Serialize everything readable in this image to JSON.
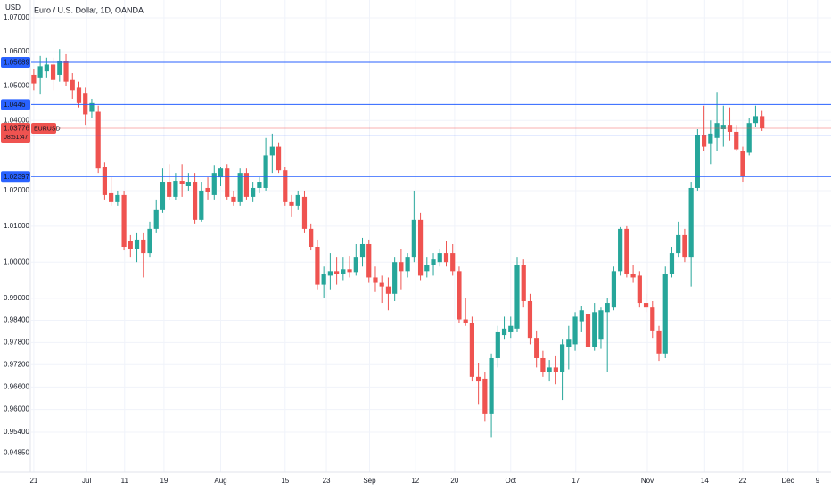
{
  "chart_data": {
    "type": "candlestick",
    "title": "Euro / U.S. Dollar, 1D, OANDA",
    "y_label": "USD",
    "up_color": "#26a69a",
    "down_color": "#ef5350",
    "log_scale": true,
    "grid": true,
    "ylim": [
      0.9458,
      1.0753
    ],
    "yticks": [
      {
        "value": 1.07,
        "label": "1.07000"
      },
      {
        "value": 1.06,
        "label": "1.06000"
      },
      {
        "value": 1.05,
        "label": "1.05000"
      },
      {
        "value": 1.04,
        "label": "1.04000"
      },
      {
        "value": 1.02,
        "label": "1.02000"
      },
      {
        "value": 1.01,
        "label": "1.01000"
      },
      {
        "value": 1.0,
        "label": "1.00000"
      },
      {
        "value": 0.99,
        "label": "0.99000"
      },
      {
        "value": 0.984,
        "label": "0.98400"
      },
      {
        "value": 0.978,
        "label": "0.97800"
      },
      {
        "value": 0.972,
        "label": "0.97200"
      },
      {
        "value": 0.966,
        "label": "0.96600"
      },
      {
        "value": 0.96,
        "label": "0.96000"
      },
      {
        "value": 0.954,
        "label": "0.95400"
      },
      {
        "value": 0.9485,
        "label": "0.94850"
      }
    ],
    "xlim": [
      -0.4,
      123.7
    ],
    "xticks": [
      {
        "value": 0,
        "label": "21"
      },
      {
        "value": 8.2,
        "label": "Jul"
      },
      {
        "value": 14.1,
        "label": "11"
      },
      {
        "value": 20.2,
        "label": "19"
      },
      {
        "value": 29,
        "label": "Aug"
      },
      {
        "value": 39,
        "label": "15"
      },
      {
        "value": 45.4,
        "label": "23"
      },
      {
        "value": 52.1,
        "label": "Sep"
      },
      {
        "value": 59.2,
        "label": "12"
      },
      {
        "value": 65.3,
        "label": "20"
      },
      {
        "value": 74,
        "label": "Oct"
      },
      {
        "value": 84.1,
        "label": "17"
      },
      {
        "value": 95.2,
        "label": "Nov"
      },
      {
        "value": 104.1,
        "label": "14"
      },
      {
        "value": 110,
        "label": "22"
      },
      {
        "value": 117,
        "label": "Dec"
      },
      {
        "value": 121.6,
        "label": "9"
      }
    ],
    "open": [
      1.05325,
      1.0525,
      1.05425,
      1.05625,
      1.05325,
      1.05725,
      1.05175,
      1.0495,
      1.048,
      1.0425,
      1.0425,
      1.02675,
      1.01925,
      1.01675,
      1.01875,
      1.00575,
      1.00375,
      1.00625,
      1.0025,
      1.00925,
      1.0145,
      1.0225,
      1.01825,
      1.02275,
      1.02125,
      1.0225,
      1.01175,
      1.02075,
      1.01875,
      1.02375,
      1.02625,
      1.01825,
      1.01675,
      1.025,
      1.01825,
      1.02075,
      1.02075,
      1.03,
      1.0325,
      1.02575,
      1.01675,
      1.01575,
      1.01825,
      1.00925,
      1.00425,
      0.99375,
      0.99625,
      0.9975,
      0.99675,
      0.998,
      0.99725,
      1.00125,
      1.005,
      0.99575,
      0.99425,
      0.99325,
      0.99125,
      1.0,
      0.9975,
      1.00125,
      1.01175,
      0.9975,
      0.99925,
      1.0,
      1.0025,
      1.0025,
      0.9975,
      0.98425,
      0.98325,
      0.96875,
      0.96825,
      0.95875,
      0.97375,
      0.98,
      0.98075,
      0.98175,
      0.99925,
      0.98925,
      0.97925,
      0.97375,
      0.97,
      0.97125,
      0.97,
      0.97675,
      0.9775,
      0.98375,
      0.98575,
      0.97675,
      0.97875,
      0.98625,
      0.9875,
      0.9975,
      1.00925,
      0.99675,
      0.99625,
      0.98875,
      0.9875,
      0.98125,
      0.975,
      0.99675,
      1.0025,
      1.0075,
      1.00125,
      1.02075,
      1.03575,
      1.03325,
      1.035,
      1.0375,
      1.03875,
      1.03675,
      1.03125,
      1.03075,
      1.03925,
      1.04125
    ],
    "high": [
      1.055,
      1.05875,
      1.05825,
      1.05825,
      1.06075,
      1.05925,
      1.05375,
      1.05125,
      1.0495,
      1.04625,
      1.04425,
      1.028,
      1.02375,
      1.02,
      1.02,
      1.0075,
      1.00825,
      1.00825,
      1.01125,
      1.0175,
      1.02625,
      1.0275,
      1.025,
      1.0275,
      1.025,
      1.025,
      1.0225,
      1.02375,
      1.02725,
      1.02675,
      1.0275,
      1.02,
      1.02625,
      1.02625,
      1.0225,
      1.02375,
      1.035,
      1.03625,
      1.03375,
      1.02675,
      1.01875,
      1.02,
      1.02,
      1.01075,
      1.00625,
      0.99875,
      1.0025,
      1.00125,
      1.00125,
      1.00175,
      1.005,
      1.00675,
      1.00625,
      0.99875,
      0.99625,
      0.99575,
      1.00125,
      1.00375,
      1.0025,
      1.02,
      1.01375,
      1.00125,
      1.0025,
      1.00375,
      1.00575,
      1.005,
      0.99875,
      0.99,
      0.985,
      0.9725,
      0.97,
      0.975,
      0.9825,
      0.985,
      0.985,
      1.00125,
      1.00075,
      0.99125,
      0.98125,
      0.97575,
      0.97325,
      0.97425,
      0.97875,
      0.9825,
      0.98625,
      0.988,
      0.9875,
      0.98875,
      0.9875,
      0.99,
      0.99875,
      1.00975,
      1.01,
      0.99925,
      0.9975,
      0.99125,
      0.98925,
      0.9825,
      0.99875,
      1.00425,
      1.01125,
      1.00925,
      1.0225,
      1.0375,
      1.04425,
      1.04,
      1.04825,
      1.04425,
      1.04375,
      1.03875,
      1.0325,
      1.04075,
      1.04425,
      1.04275
    ],
    "low": [
      1.04875,
      1.0475,
      1.0525,
      1.04875,
      1.05125,
      1.05,
      1.04625,
      1.04375,
      1.03875,
      1.04075,
      1.025,
      1.0175,
      1.01575,
      1.01575,
      1.00325,
      1.00125,
      1.0,
      0.99575,
      1.00125,
      1.00825,
      1.01375,
      1.01725,
      1.01725,
      1.01825,
      1.02,
      1.01075,
      1.01125,
      1.0175,
      1.0175,
      1.02125,
      1.0175,
      1.01575,
      1.01575,
      1.0175,
      1.01675,
      1.01925,
      1.02,
      1.025,
      1.025,
      1.01575,
      1.0125,
      1.0145,
      1.00825,
      1.00325,
      0.9925,
      0.99,
      0.9925,
      0.99375,
      0.995,
      0.99575,
      0.99625,
      0.99875,
      0.99425,
      0.99175,
      0.98875,
      0.98675,
      0.98925,
      0.9925,
      0.99575,
      1.0,
      0.995,
      0.99575,
      0.99625,
      0.99875,
      0.99875,
      0.99625,
      0.98325,
      0.9825,
      0.9675,
      0.96125,
      0.95675,
      0.9525,
      0.97125,
      0.97875,
      0.97925,
      0.98075,
      0.9875,
      0.9775,
      0.97125,
      0.96875,
      0.9675,
      0.96675,
      0.9625,
      0.97075,
      0.97575,
      0.98075,
      0.975,
      0.97575,
      0.97625,
      0.97,
      0.98675,
      0.99625,
      0.99575,
      0.99425,
      0.9875,
      0.98625,
      0.97925,
      0.973,
      0.97375,
      0.99575,
      1.00125,
      1.0,
      0.99325,
      1.02,
      1.03125,
      1.0275,
      1.03125,
      1.0325,
      1.03425,
      1.03125,
      1.0225,
      1.03,
      1.03825,
      1.037
    ],
    "close": [
      1.05075,
      1.05575,
      1.05625,
      1.05175,
      1.05725,
      1.05125,
      1.04875,
      1.045,
      1.04175,
      1.045,
      1.02625,
      1.01875,
      1.01675,
      1.01875,
      1.00425,
      1.00375,
      1.00625,
      1.0025,
      1.00925,
      1.0145,
      1.0225,
      1.01825,
      1.02275,
      1.02175,
      1.0225,
      1.01175,
      1.02,
      1.0195,
      1.025,
      1.02625,
      1.01825,
      1.01675,
      1.025,
      1.01825,
      1.02075,
      1.0225,
      1.03,
      1.0325,
      1.02575,
      1.01675,
      1.01575,
      1.01875,
      1.00925,
      1.00425,
      0.99375,
      0.99675,
      0.9975,
      0.99675,
      0.998,
      0.99725,
      1.00125,
      1.005,
      0.99575,
      0.99425,
      0.99325,
      0.99125,
      1.0,
      0.9975,
      1.00125,
      1.01175,
      0.99625,
      0.99925,
      1.00075,
      1.0025,
      1.0,
      0.9975,
      0.98425,
      0.98325,
      0.96875,
      0.9675,
      0.95875,
      0.97375,
      0.98075,
      0.98175,
      0.9825,
      0.99925,
      0.98925,
      0.97925,
      0.97375,
      0.97,
      0.97125,
      0.97,
      0.9775,
      0.97875,
      0.985,
      0.98675,
      0.97675,
      0.98625,
      0.98675,
      0.98875,
      0.9975,
      1.00925,
      0.99675,
      0.99575,
      0.98875,
      0.9875,
      0.98125,
      0.975,
      0.99675,
      1.0025,
      1.0075,
      1.00125,
      1.02075,
      1.03575,
      1.0325,
      1.03625,
      1.03925,
      1.03875,
      1.03675,
      1.03175,
      1.02425,
      1.03925,
      1.04125,
      1.03776
    ],
    "price_lines": {
      "color": "#2962ff",
      "values": [
        1.05689,
        1.0446,
        1.03582,
        1.02397
      ]
    },
    "last_price": {
      "value": 1.03776,
      "symbol": "EURUSD",
      "countdown": "08:51:47",
      "color": "#ef5350"
    }
  }
}
